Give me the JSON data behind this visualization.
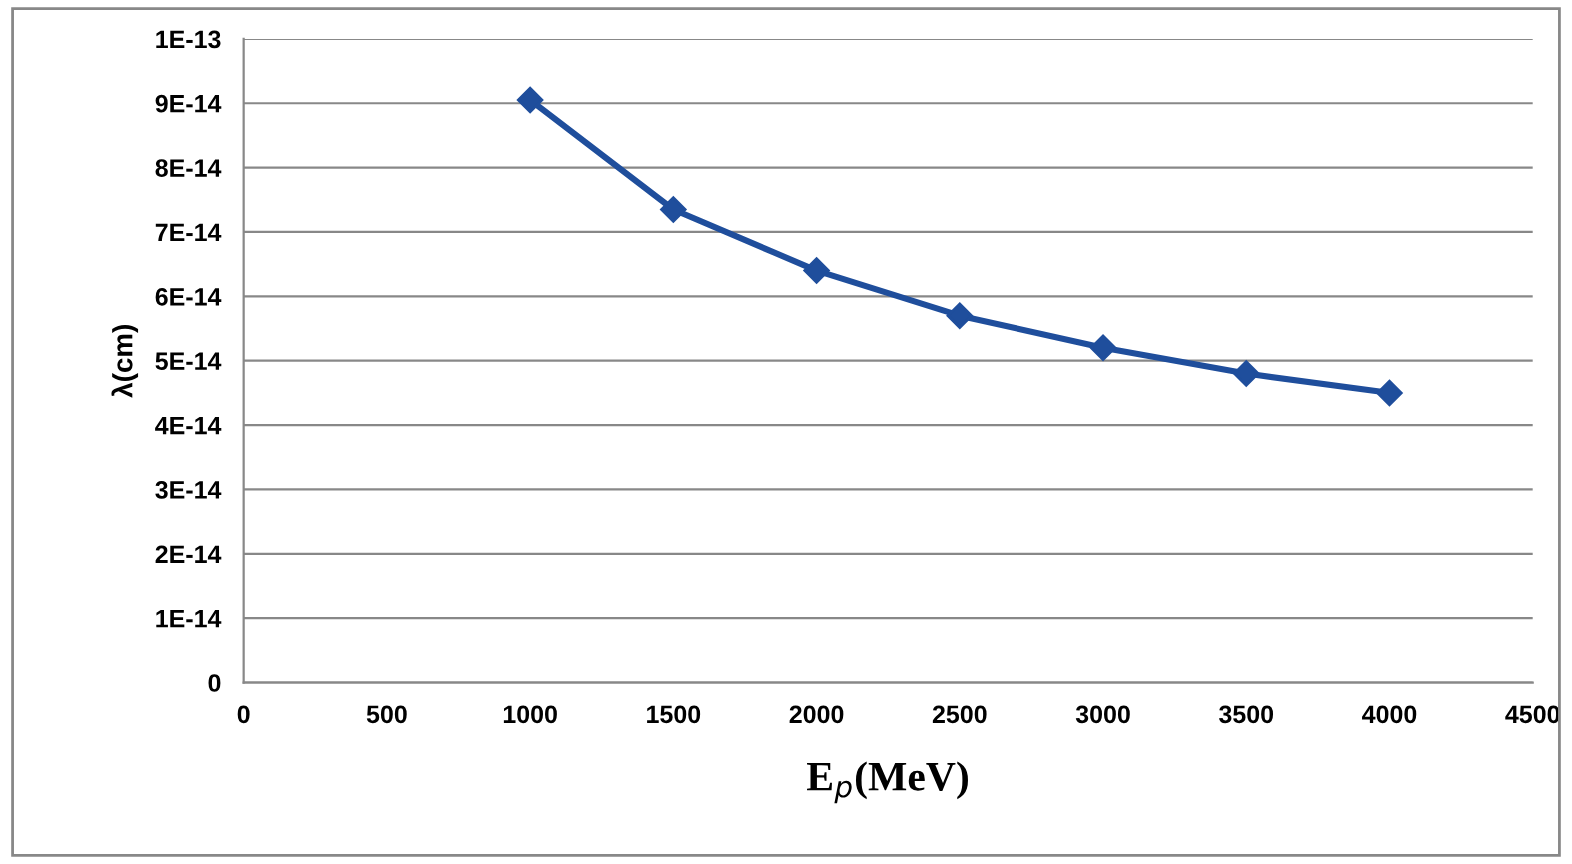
{
  "chart_data": {
    "type": "line",
    "xlabel": "E$_{p}$(MeV)",
    "ylabel": "λ(cm)",
    "x": [
      1000,
      1500,
      2000,
      2500,
      3000,
      3500,
      4000
    ],
    "series": [
      {
        "color": "#1f4e9c",
        "values": [
          9.05e-14,
          7.35e-14,
          6.4e-14,
          5.7e-14,
          5.2e-14,
          4.8e-14,
          4.5e-14
        ]
      }
    ],
    "xlim": [
      0,
      4500
    ],
    "xticks": [
      0,
      500,
      1000,
      1500,
      2000,
      2500,
      3000,
      3500,
      4000,
      4500
    ],
    "ylim": [
      0,
      1e-13
    ],
    "yticks": [
      {
        "value": 0,
        "label": "0"
      },
      {
        "value": 1e-14,
        "label": "1E-14"
      },
      {
        "value": 2e-14,
        "label": "2E-14"
      },
      {
        "value": 3e-14,
        "label": "3E-14"
      },
      {
        "value": 4e-14,
        "label": "4E-14"
      },
      {
        "value": 5e-14,
        "label": "5E-14"
      },
      {
        "value": 6e-14,
        "label": "6E-14"
      },
      {
        "value": 7e-14,
        "label": "7E-14"
      },
      {
        "value": 8e-14,
        "label": "8E-14"
      },
      {
        "value": 9e-14,
        "label": "9E-14"
      },
      {
        "value": 1e-13,
        "label": "1E-13"
      }
    ],
    "grid": "y",
    "marker": "diamond",
    "line_style": "solid"
  }
}
